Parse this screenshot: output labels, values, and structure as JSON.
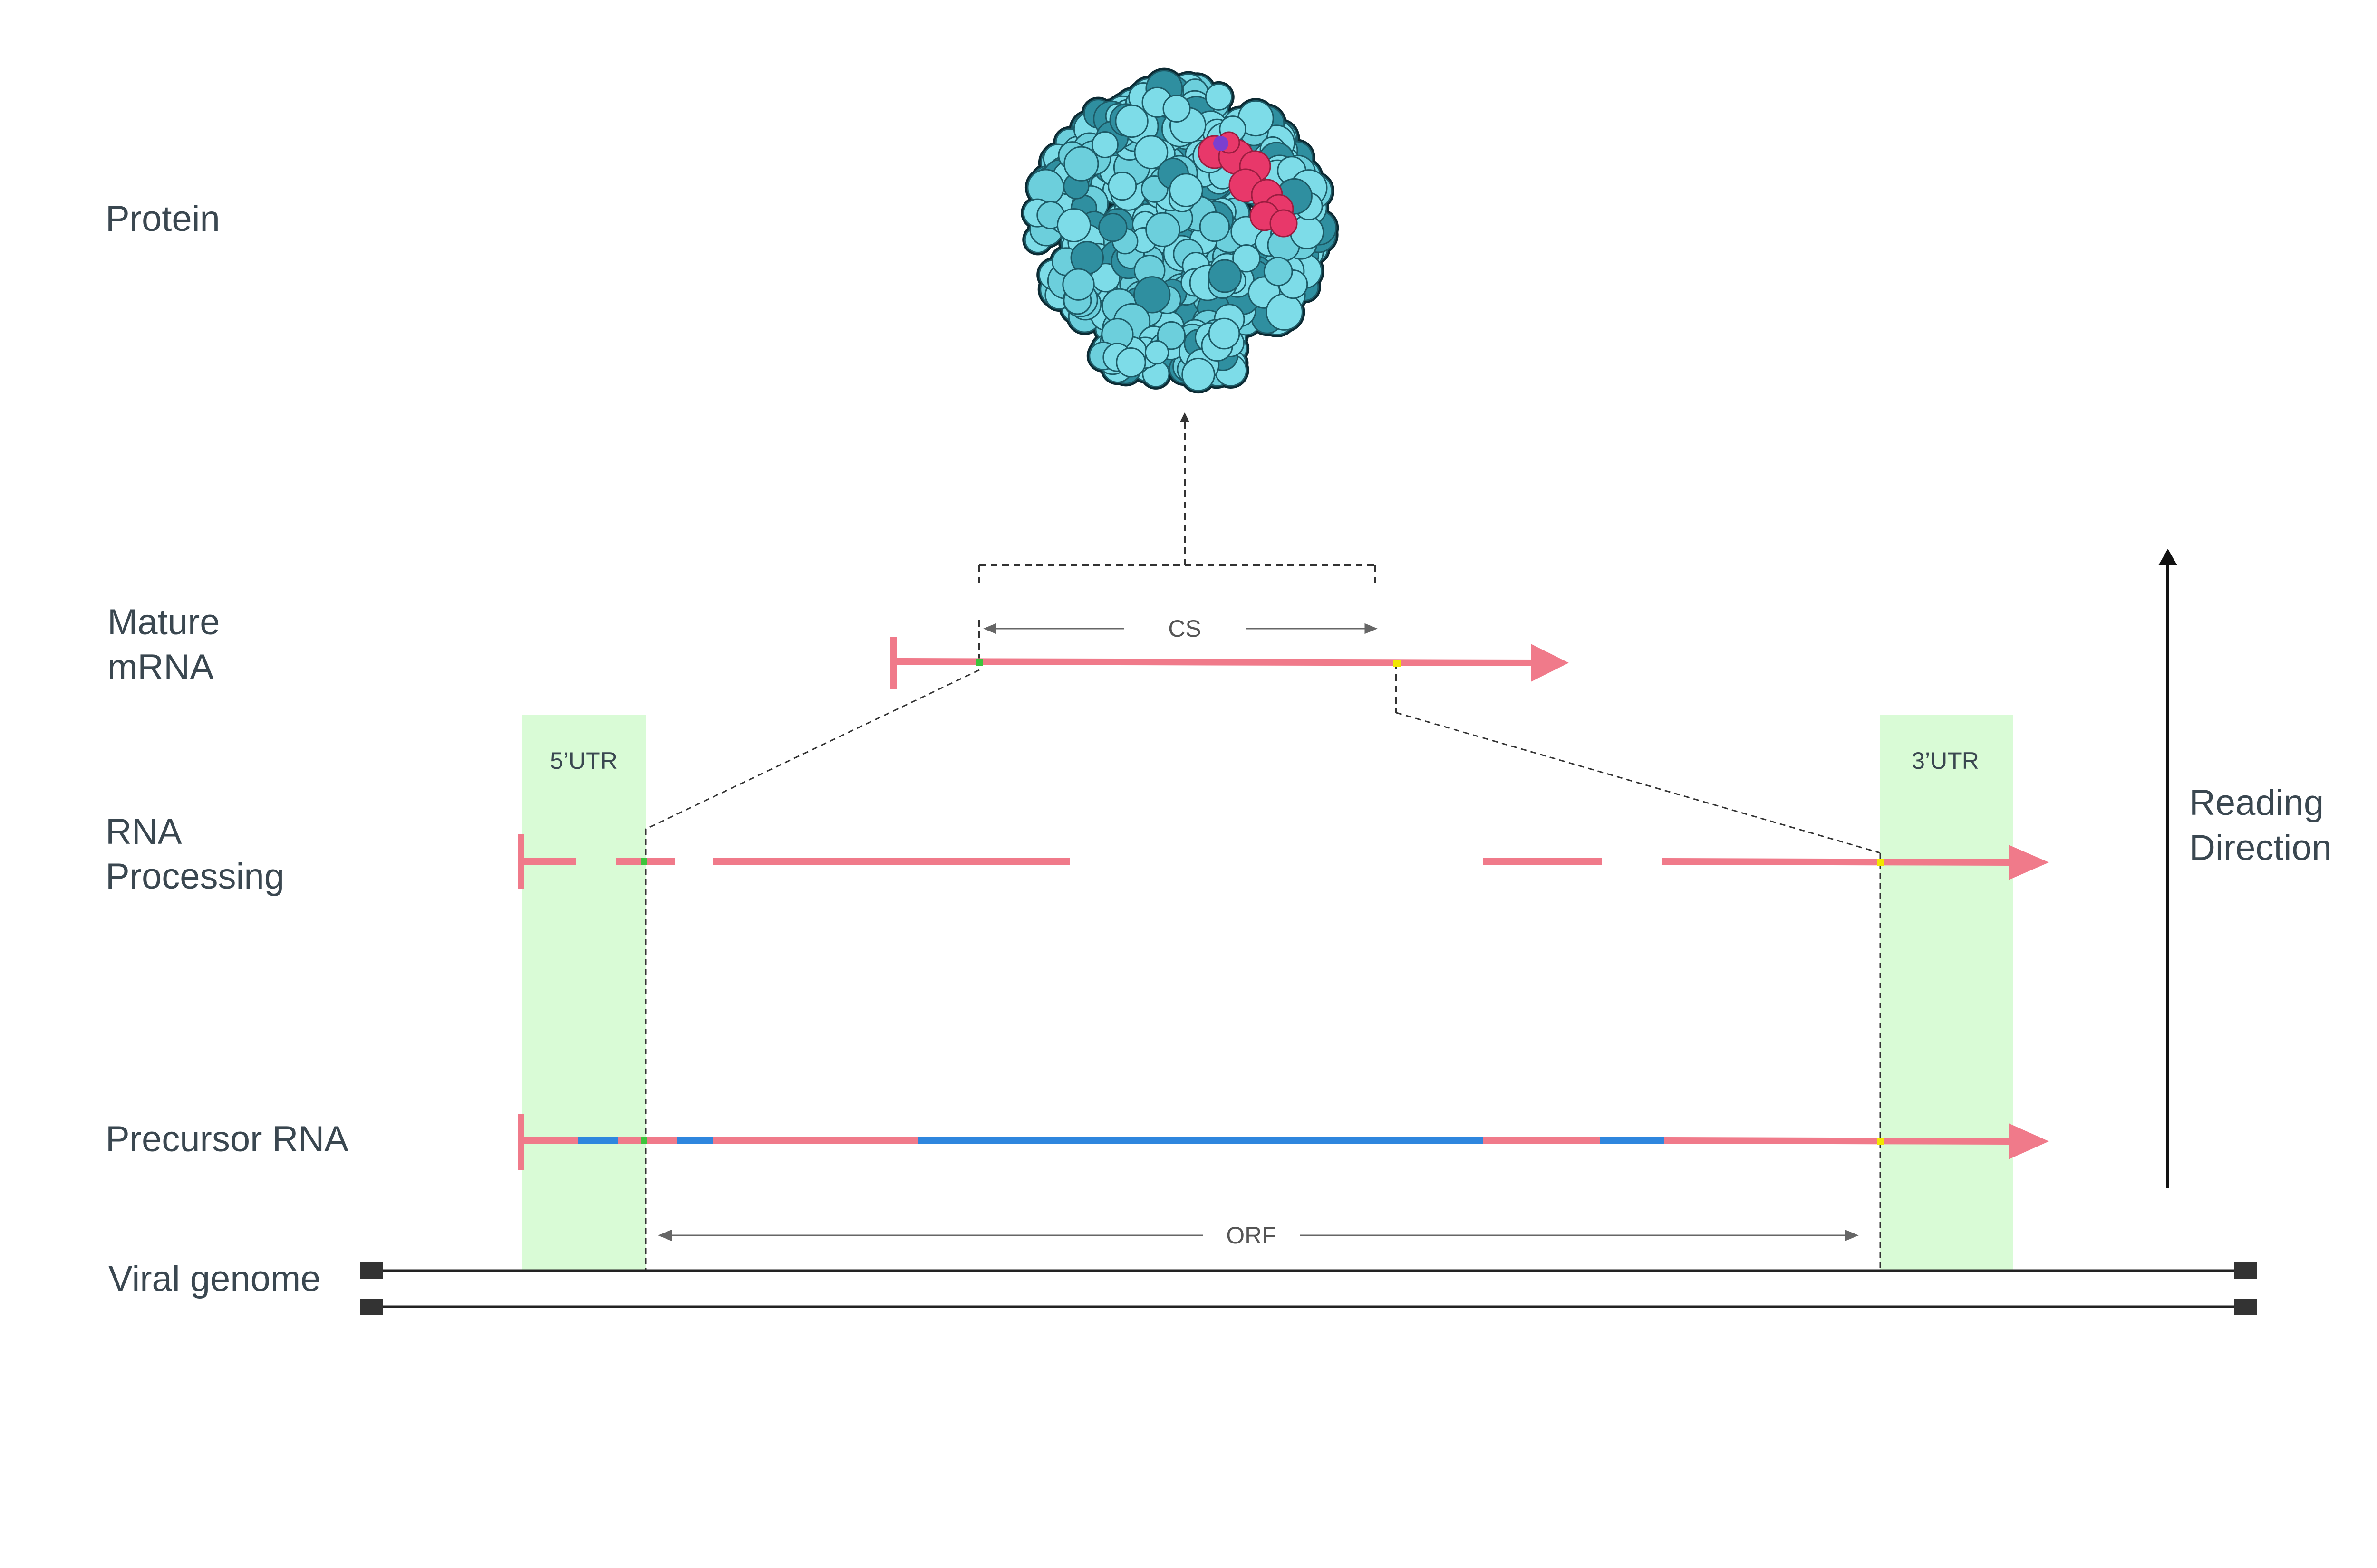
{
  "labels": {
    "protein": "Protein",
    "mature_mrna_line1": "Mature",
    "mature_mrna_line2": "mRNA",
    "rna_processing_line1": "RNA",
    "rna_processing_line2": "Processing",
    "precursor_rna": "Precursor RNA",
    "viral_genome": "Viral genome",
    "reading_direction_line1": "Reading",
    "reading_direction_line2": "Direction",
    "cs": "CS",
    "orf": "ORF",
    "utr5": "5’UTR",
    "utr3": "3’UTR"
  },
  "colors": {
    "rna": "#f07a8a",
    "intron": "#2e86de",
    "utr_box": "#d9fbd6",
    "start_marker": "#3cc43c",
    "stop_marker": "#f2e600",
    "protein": "#7ddce8",
    "protein_dark": "#2f8fa0",
    "protein_site": "#e8386a",
    "text": "#3a4750",
    "genome": "#222222"
  },
  "icons": {
    "protein": "protein-structure-icon"
  }
}
